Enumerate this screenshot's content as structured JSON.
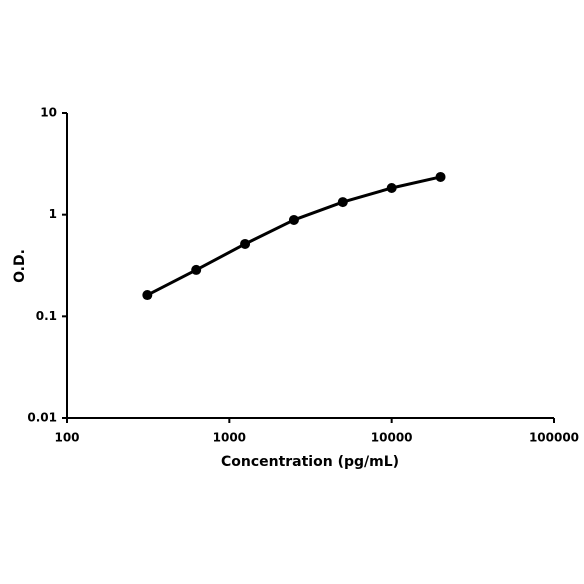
{
  "chart_data": {
    "type": "line",
    "x_label": "Concentration (pg/mL)",
    "y_label": "O.D.",
    "x": [
      312.5,
      625,
      1250,
      2500,
      5000,
      10000,
      20000
    ],
    "series": [
      {
        "color": "#000000",
        "values": [
          0.162,
          0.286,
          0.515,
          0.887,
          1.33,
          1.83,
          2.35
        ]
      }
    ],
    "xlim": [
      100,
      100000
    ],
    "xticks": [
      100,
      1000,
      10000,
      100000
    ],
    "ylim": [
      0.01,
      10
    ],
    "yticks": [
      0.01,
      0.1,
      1,
      10
    ],
    "xscale": "log",
    "yscale": "log",
    "markers": true,
    "grid": false
  }
}
